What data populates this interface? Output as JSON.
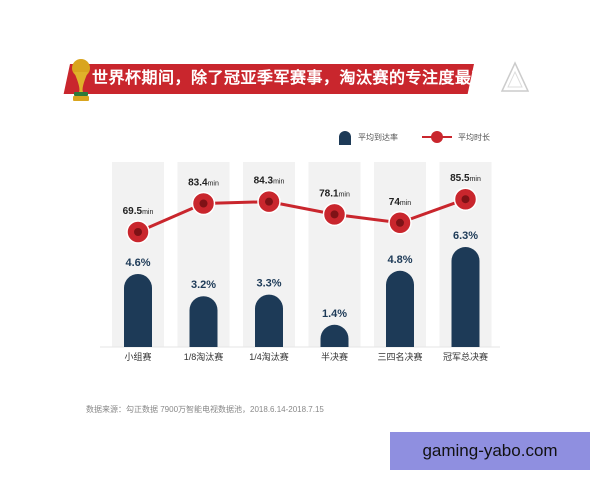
{
  "header": {
    "title": "世界杯期间，除了冠亚季军赛事，淘汰赛的专注度最高"
  },
  "colors": {
    "accent_red": "#c9262d",
    "bar_navy": "#1d3a57",
    "column_bg": "#f2f2f2",
    "line_red": "#c9262d"
  },
  "legend": {
    "bar_label": "平均到达率",
    "line_label": "平均时长"
  },
  "source": "数据来源：勾正数据 7900万智能电视数据池，2018.6.14-2018.7.15",
  "watermark": "gaming-yabo.com",
  "chart_data": {
    "type": "bar",
    "categories": [
      "小组赛",
      "1/8淘汰赛",
      "1/4淘汰赛",
      "半决赛",
      "三四名决赛",
      "冠军总决赛"
    ],
    "series": [
      {
        "name": "平均到达率",
        "type": "bar",
        "values": [
          4.6,
          3.2,
          3.3,
          1.4,
          4.8,
          6.3
        ],
        "labels": [
          "4.6%",
          "3.2%",
          "3.3%",
          "1.4%",
          "4.8%",
          "6.3%"
        ]
      },
      {
        "name": "平均时长",
        "type": "line",
        "values": [
          69.5,
          83.4,
          84.3,
          78.1,
          74,
          85.5
        ],
        "labels": [
          "69.5",
          "83.4",
          "84.3",
          "78.1",
          "74",
          "85.5"
        ],
        "unit": "min"
      }
    ],
    "title": "世界杯期间，除了冠亚季军赛事，淘汰赛的专注度最高",
    "legend_position": "top-right",
    "grid": false
  }
}
